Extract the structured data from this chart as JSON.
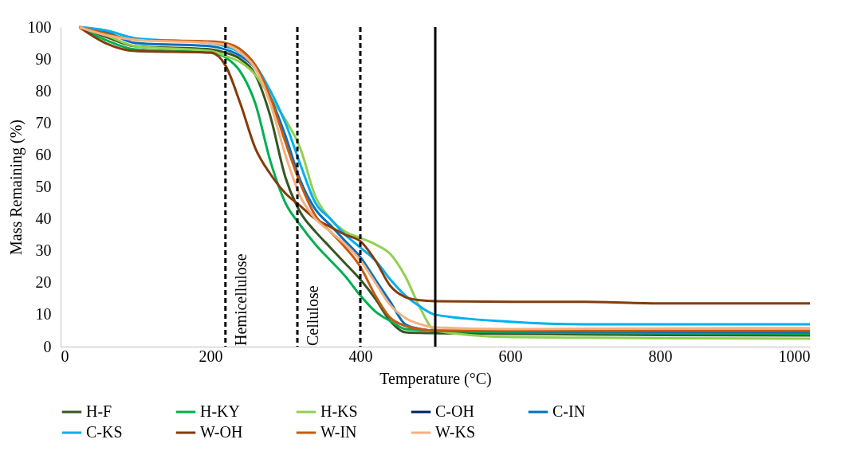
{
  "chart_data": {
    "type": "line",
    "xlabel": "Temperature (°C)",
    "ylabel": "Mass Remaining (%)",
    "x": [
      25,
      60,
      100,
      200,
      220,
      240,
      260,
      280,
      300,
      320,
      340,
      360,
      380,
      400,
      420,
      440,
      460,
      480,
      500,
      600,
      700,
      800,
      1000
    ],
    "xlim": [
      0,
      1000
    ],
    "xticks": [
      0,
      200,
      400,
      600,
      800,
      1000
    ],
    "ylim": [
      0,
      100
    ],
    "yticks": [
      0,
      10,
      20,
      30,
      40,
      50,
      60,
      70,
      80,
      90,
      100
    ],
    "grid": false,
    "legend": "bottom",
    "marker": "none",
    "line_style": "solid",
    "series": [
      {
        "name": "H-F",
        "color": "#375623",
        "values": [
          100,
          97,
          94,
          93,
          92,
          90,
          85,
          72,
          53,
          42,
          36,
          31,
          26,
          21,
          15,
          8,
          4.5,
          4.3,
          4.2,
          4,
          3.8,
          3.6,
          3.5
        ]
      },
      {
        "name": "H-KY",
        "color": "#00b050",
        "values": [
          100,
          96,
          93,
          92,
          90.5,
          86,
          76,
          58,
          45,
          38,
          32,
          27,
          22,
          16,
          11,
          8,
          5.5,
          5.2,
          5,
          4.5,
          4.3,
          4.2,
          4
        ]
      },
      {
        "name": "H-KS",
        "color": "#92d050",
        "values": [
          100,
          97.5,
          94,
          92.5,
          91,
          89,
          85,
          78,
          71,
          62,
          47,
          40,
          36,
          34,
          32,
          29,
          22,
          12,
          5,
          3,
          2.8,
          2.6,
          2.5
        ]
      },
      {
        "name": "C-OH",
        "color": "#002060",
        "values": [
          null,
          null,
          null,
          null,
          null,
          null,
          null,
          null,
          null,
          null,
          null,
          null,
          null,
          null,
          null,
          null,
          null,
          null,
          null,
          null,
          null,
          null,
          null
        ]
      },
      {
        "name": "C-IN",
        "color": "#0070c0",
        "values": [
          100,
          98.5,
          95,
          94,
          93,
          91,
          87,
          78,
          66,
          52,
          43,
          38,
          33,
          28,
          21,
          14,
          7,
          5.5,
          5,
          4.8,
          4.7,
          4.6,
          4.5
        ]
      },
      {
        "name": "C-KS",
        "color": "#00b0f0",
        "values": [
          100,
          99,
          96.5,
          95,
          94,
          92,
          88,
          80,
          70,
          57,
          45,
          40,
          35,
          31,
          27,
          21,
          16,
          12.5,
          10,
          7.8,
          7,
          7,
          7
        ]
      },
      {
        "name": "W-OH",
        "color": "#843c0c",
        "values": [
          100,
          95,
          92.5,
          92,
          88,
          76,
          62,
          54,
          48,
          44,
          40,
          37.5,
          35,
          33,
          27,
          19,
          15.5,
          14.5,
          14.2,
          14,
          14,
          13.5,
          13.5
        ]
      },
      {
        "name": "W-IN",
        "color": "#c55a11",
        "values": [
          100,
          98,
          96,
          95.5,
          95,
          93,
          88,
          78,
          64,
          51,
          41,
          36,
          31,
          25,
          16,
          9,
          6.5,
          5.5,
          5,
          5,
          5,
          5,
          5
        ]
      },
      {
        "name": "W-KS",
        "color": "#f4b183",
        "values": [
          100,
          97.5,
          96,
          95,
          94.5,
          92,
          87,
          76,
          60,
          47,
          40,
          36,
          32,
          27,
          20,
          13,
          9,
          7,
          6,
          5.5,
          5.6,
          5.7,
          5.8
        ]
      }
    ],
    "ref_lines": [
      {
        "axis": "x",
        "value": 220,
        "label": "Hemicellulose",
        "line_style": "dashed",
        "color": "#000000"
      },
      {
        "axis": "x",
        "value": 316,
        "label": "Cellulose",
        "line_style": "dashed",
        "color": "#000000"
      },
      {
        "axis": "x",
        "value": 400,
        "label": null,
        "line_style": "dashed",
        "color": "#000000"
      },
      {
        "axis": "x",
        "value": 500,
        "label": null,
        "line_style": "solid",
        "color": "#000000"
      }
    ]
  }
}
